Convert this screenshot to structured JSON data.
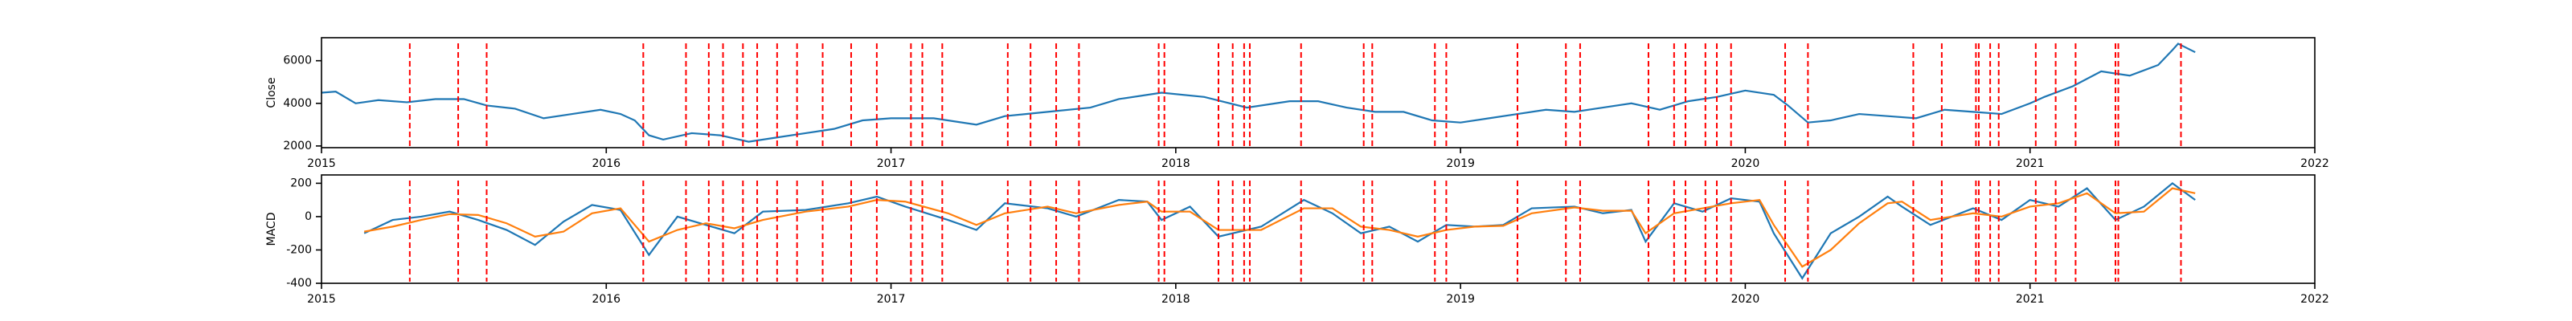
{
  "chart_data": [
    {
      "type": "line",
      "ylabel": "Close",
      "x": [
        2015.0,
        2015.05,
        2015.12,
        2015.2,
        2015.3,
        2015.4,
        2015.5,
        2015.58,
        2015.68,
        2015.78,
        2015.88,
        2015.98,
        2016.05,
        2016.1,
        2016.15,
        2016.2,
        2016.3,
        2016.4,
        2016.5,
        2016.6,
        2016.7,
        2016.8,
        2016.9,
        2017.0,
        2017.15,
        2017.3,
        2017.4,
        2017.55,
        2017.7,
        2017.8,
        2017.95,
        2018.1,
        2018.25,
        2018.4,
        2018.5,
        2018.6,
        2018.7,
        2018.8,
        2018.9,
        2019.0,
        2019.1,
        2019.2,
        2019.3,
        2019.4,
        2019.5,
        2019.6,
        2019.7,
        2019.8,
        2019.9,
        2020.0,
        2020.1,
        2020.15,
        2020.22,
        2020.3,
        2020.4,
        2020.5,
        2020.6,
        2020.7,
        2020.8,
        2020.9,
        2021.0,
        2021.05,
        2021.15,
        2021.25,
        2021.3,
        2021.35,
        2021.45,
        2021.5,
        2021.52,
        2021.58
      ],
      "series": [
        {
          "color": "#1f77b4",
          "values": [
            4500,
            4550,
            4000,
            4150,
            4050,
            4200,
            4200,
            3900,
            3750,
            3300,
            3500,
            3700,
            3500,
            3200,
            2500,
            2300,
            2600,
            2500,
            2200,
            2400,
            2600,
            2800,
            3200,
            3300,
            3300,
            3000,
            3400,
            3600,
            3800,
            4200,
            4500,
            4300,
            3800,
            4100,
            4100,
            3800,
            3600,
            3600,
            3200,
            3100,
            3300,
            3500,
            3700,
            3600,
            3800,
            4000,
            3700,
            4100,
            4300,
            4600,
            4400,
            3900,
            3100,
            3200,
            3500,
            3400,
            3300,
            3700,
            3600,
            3500,
            4000,
            4300,
            4800,
            5500,
            5400,
            5300,
            5800,
            6500,
            6800,
            6400
          ]
        }
      ],
      "xlim": [
        2015,
        2022
      ],
      "xticks": [
        2015,
        2016,
        2017,
        2018,
        2019,
        2020,
        2021,
        2022
      ],
      "ylim": [
        1920,
        7080
      ],
      "yticks": [
        2000,
        4000,
        6000
      ],
      "vlines": {
        "color": "#ff0000",
        "values": [
          2015.31,
          2015.48,
          2015.58,
          2016.13,
          2016.28,
          2016.36,
          2016.41,
          2016.48,
          2016.53,
          2016.6,
          2016.67,
          2016.76,
          2016.86,
          2016.95,
          2017.07,
          2017.11,
          2017.18,
          2017.41,
          2017.49,
          2017.58,
          2017.66,
          2017.94,
          2017.96,
          2018.15,
          2018.2,
          2018.24,
          2018.26,
          2018.44,
          2018.66,
          2018.69,
          2018.91,
          2018.95,
          2019.2,
          2019.37,
          2019.42,
          2019.66,
          2019.75,
          2019.79,
          2019.86,
          2019.9,
          2019.95,
          2020.14,
          2020.22,
          2020.59,
          2020.69,
          2020.81,
          2020.82,
          2020.86,
          2020.89,
          2021.02,
          2021.09,
          2021.16,
          2021.3,
          2021.31,
          2021.53
        ]
      }
    },
    {
      "type": "line",
      "ylabel": "MACD",
      "x": [
        2015.15,
        2015.25,
        2015.35,
        2015.45,
        2015.55,
        2015.65,
        2015.75,
        2015.85,
        2015.95,
        2016.05,
        2016.15,
        2016.25,
        2016.35,
        2016.45,
        2016.55,
        2016.7,
        2016.85,
        2016.95,
        2017.05,
        2017.2,
        2017.3,
        2017.4,
        2017.55,
        2017.65,
        2017.8,
        2017.9,
        2017.95,
        2018.05,
        2018.15,
        2018.3,
        2018.45,
        2018.55,
        2018.65,
        2018.75,
        2018.85,
        2018.95,
        2019.05,
        2019.15,
        2019.25,
        2019.4,
        2019.5,
        2019.6,
        2019.65,
        2019.75,
        2019.85,
        2019.95,
        2020.05,
        2020.1,
        2020.2,
        2020.3,
        2020.4,
        2020.5,
        2020.55,
        2020.65,
        2020.8,
        2020.9,
        2021.0,
        2021.1,
        2021.2,
        2021.3,
        2021.4,
        2021.5,
        2021.58
      ],
      "series": [
        {
          "color": "#1f77b4",
          "values": [
            -100,
            -20,
            0,
            30,
            -20,
            -80,
            -170,
            -30,
            70,
            40,
            -230,
            0,
            -50,
            -100,
            30,
            40,
            80,
            120,
            60,
            -20,
            -80,
            80,
            50,
            0,
            100,
            90,
            -20,
            60,
            -120,
            -60,
            100,
            20,
            -100,
            -60,
            -150,
            -50,
            -60,
            -50,
            50,
            60,
            20,
            40,
            -150,
            80,
            30,
            110,
            90,
            -100,
            -370,
            -100,
            0,
            120,
            60,
            -50,
            50,
            -20,
            100,
            60,
            170,
            -20,
            60,
            200,
            100
          ]
        },
        {
          "color": "#ff7f0e",
          "values": [
            -90,
            -60,
            -20,
            15,
            10,
            -40,
            -120,
            -90,
            20,
            50,
            -150,
            -80,
            -40,
            -70,
            -20,
            30,
            60,
            100,
            90,
            20,
            -50,
            20,
            60,
            20,
            70,
            90,
            30,
            30,
            -80,
            -80,
            50,
            50,
            -60,
            -80,
            -120,
            -80,
            -60,
            -55,
            20,
            55,
            35,
            35,
            -100,
            20,
            50,
            80,
            100,
            -50,
            -300,
            -200,
            -40,
            80,
            90,
            -20,
            20,
            0,
            60,
            80,
            140,
            20,
            30,
            170,
            140
          ]
        }
      ],
      "xlim": [
        2015,
        2022
      ],
      "xticks": [
        2015,
        2016,
        2017,
        2018,
        2019,
        2020,
        2021,
        2022
      ],
      "ylim": [
        -400,
        250
      ],
      "yticks": [
        -400,
        -200,
        0,
        200
      ],
      "vlines": {
        "color": "#ff0000",
        "values": [
          2015.31,
          2015.48,
          2015.58,
          2016.13,
          2016.28,
          2016.36,
          2016.41,
          2016.48,
          2016.53,
          2016.6,
          2016.67,
          2016.76,
          2016.86,
          2016.95,
          2017.07,
          2017.11,
          2017.18,
          2017.41,
          2017.49,
          2017.58,
          2017.66,
          2017.94,
          2017.96,
          2018.15,
          2018.2,
          2018.24,
          2018.26,
          2018.44,
          2018.66,
          2018.69,
          2018.91,
          2018.95,
          2019.2,
          2019.37,
          2019.42,
          2019.66,
          2019.75,
          2019.79,
          2019.86,
          2019.9,
          2019.95,
          2020.14,
          2020.22,
          2020.59,
          2020.69,
          2020.81,
          2020.82,
          2020.86,
          2020.89,
          2021.02,
          2021.09,
          2021.16,
          2021.3,
          2021.31,
          2021.53
        ]
      }
    }
  ]
}
